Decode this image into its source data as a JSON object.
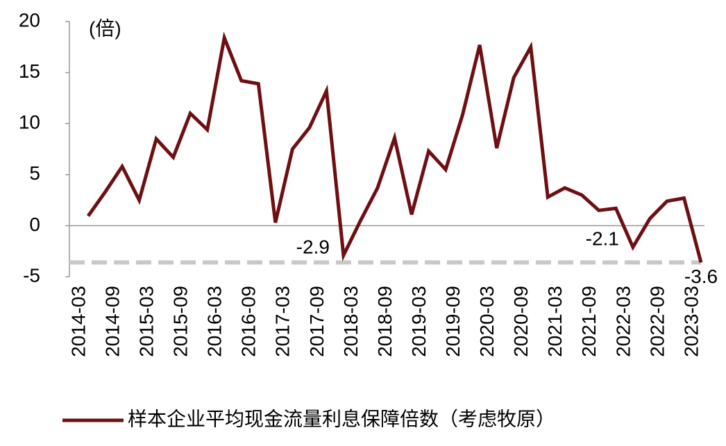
{
  "chart_data": {
    "type": "line",
    "y_unit": "(倍)",
    "categories": [
      "2014-03",
      null,
      "2014-09",
      null,
      "2015-03",
      null,
      "2015-09",
      null,
      "2016-03",
      null,
      "2016-09",
      null,
      "2017-03",
      null,
      "2017-09",
      null,
      "2018-03",
      null,
      "2018-09",
      null,
      "2019-03",
      null,
      "2019-09",
      null,
      "2020-03",
      null,
      "2020-09",
      null,
      "2021-03",
      null,
      "2021-09",
      null,
      "2022-03",
      null,
      "2022-09",
      null,
      "2023-03"
    ],
    "series": [
      {
        "name": "样本企业平均现金流量利息保障倍数（考虑牧原）",
        "color": "#6e0f12",
        "values": [
          0.95,
          3.3,
          5.8,
          2.5,
          8.5,
          6.7,
          11.0,
          9.4,
          18.4,
          14.2,
          13.9,
          0.3,
          7.5,
          9.6,
          13.2,
          -2.9,
          0.5,
          3.7,
          8.6,
          1.1,
          7.3,
          5.5,
          10.9,
          17.7,
          7.6,
          14.5,
          17.5,
          2.8,
          3.7,
          3.0,
          1.5,
          1.7,
          -2.1,
          0.7,
          2.4,
          2.7,
          -3.6
        ]
      }
    ],
    "annotations": [
      {
        "text": "-2.9",
        "index": 15
      },
      {
        "text": "-2.1",
        "index": 32
      },
      {
        "text": "-3.6",
        "index": 36
      }
    ],
    "reference_line": {
      "value": -3.6,
      "color": "#c8c8c8"
    },
    "ylim": [
      -5,
      20
    ],
    "yticks": [
      -5,
      0,
      5,
      10,
      15,
      20
    ],
    "legend": "bottom"
  }
}
